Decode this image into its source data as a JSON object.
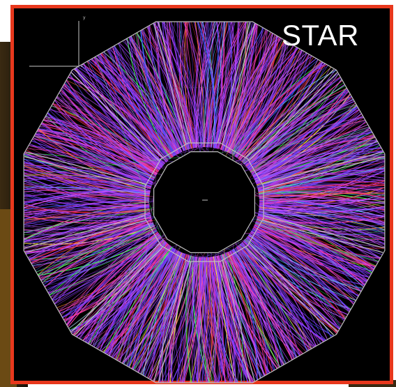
{
  "image": {
    "detector_label": "STAR",
    "axis_labels": {
      "vertical": "y",
      "horizontal": "z"
    },
    "colors": {
      "frame": "#e8381d",
      "background": "#000000",
      "detector_outline": "#bdbdbd",
      "tracks": [
        "#7b3cff",
        "#b03cff",
        "#ff3ca8",
        "#e8283c",
        "#3cff5a",
        "#5ad2ff",
        "#ffe63c",
        "#3c5aff",
        "#ff7a2a",
        "#c85aff"
      ]
    },
    "sectors": 12
  }
}
